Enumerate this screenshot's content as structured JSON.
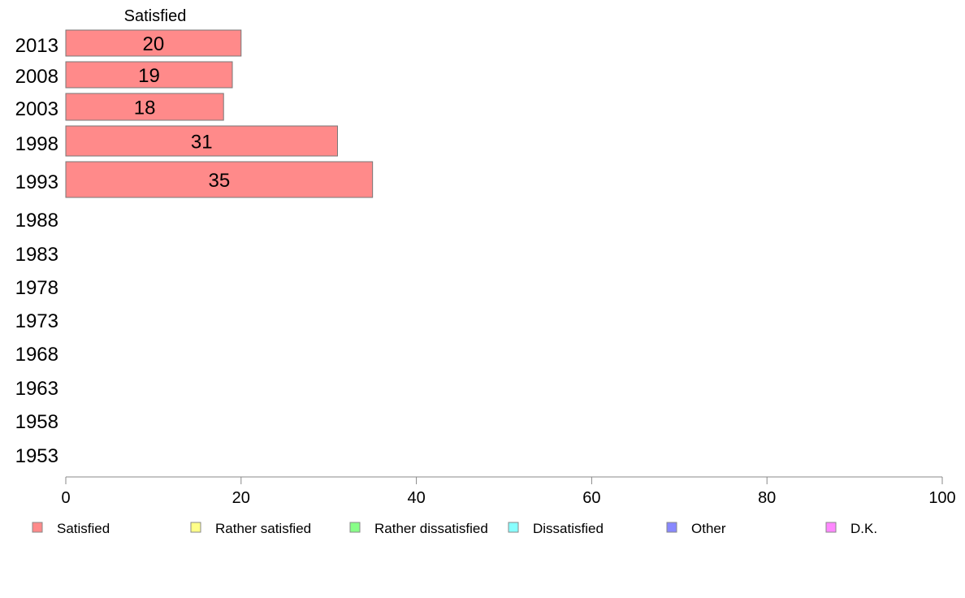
{
  "chart_data": {
    "type": "bar",
    "orientation": "horizontal",
    "categories": [
      "2013",
      "2008",
      "2003",
      "1998",
      "1993",
      "1988",
      "1983",
      "1978",
      "1973",
      "1968",
      "1963",
      "1958",
      "1953"
    ],
    "series": [
      {
        "name": "Satisfied",
        "color": "#ff8a8a",
        "values": [
          20,
          19,
          18,
          31,
          35,
          null,
          null,
          null,
          null,
          null,
          null,
          null,
          null
        ]
      },
      {
        "name": "Rather satisfied",
        "color": "#ffff88",
        "values": [
          null,
          null,
          null,
          null,
          null,
          null,
          null,
          null,
          null,
          null,
          null,
          null,
          null
        ]
      },
      {
        "name": "Rather dissatisfied",
        "color": "#88ff88",
        "values": [
          null,
          null,
          null,
          null,
          null,
          null,
          null,
          null,
          null,
          null,
          null,
          null,
          null
        ]
      },
      {
        "name": "Dissatisfied",
        "color": "#88ffff",
        "values": [
          null,
          null,
          null,
          null,
          null,
          null,
          null,
          null,
          null,
          null,
          null,
          null,
          null
        ]
      },
      {
        "name": "Other",
        "color": "#8888ff",
        "values": [
          null,
          null,
          null,
          null,
          null,
          null,
          null,
          null,
          null,
          null,
          null,
          null,
          null
        ]
      },
      {
        "name": "D.K.",
        "color": "#ff88ff",
        "values": [
          null,
          null,
          null,
          null,
          null,
          null,
          null,
          null,
          null,
          null,
          null,
          null,
          null
        ]
      }
    ],
    "bar_labels": [
      "20",
      "19",
      "18",
      "31",
      "35"
    ],
    "series_header": "Satisfied",
    "xlim": [
      0,
      100
    ],
    "xticks": [
      "0",
      "20",
      "40",
      "60",
      "80",
      "100"
    ],
    "grid": false,
    "legend_position": "bottom"
  }
}
